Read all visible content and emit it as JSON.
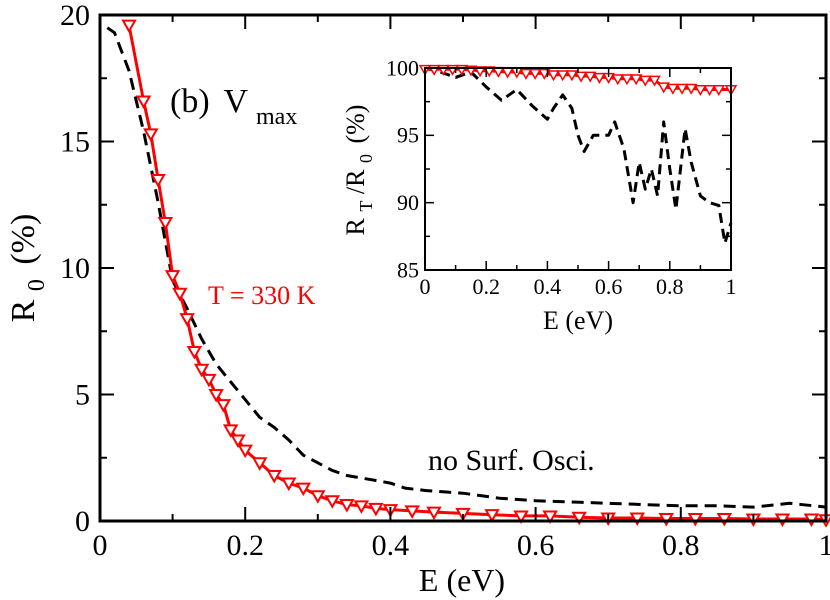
{
  "chart_data": [
    {
      "type": "line",
      "panel_label": "(b)",
      "panel_symbol": "V",
      "panel_symbol_sub": "max",
      "xlabel": "E (eV)",
      "ylabel_main": "R",
      "ylabel_sub": "0",
      "ylabel_unit": "(%)",
      "xlim": [
        0,
        1
      ],
      "ylim": [
        0,
        20
      ],
      "xticks": [
        0,
        0.2,
        0.4,
        0.6,
        0.8,
        1
      ],
      "yticks": [
        0,
        5,
        10,
        15,
        20
      ],
      "xtick_labels": [
        "0",
        "0.2",
        "0.4",
        "0.6",
        "0.8",
        "1"
      ],
      "ytick_labels": [
        "0",
        "5",
        "10",
        "15",
        "20"
      ],
      "annotations": {
        "red_series": "T = 330 K",
        "black_series": "no Surf. Osci."
      },
      "series": [
        {
          "color": "#ff0000",
          "style": "solid-triangle-down",
          "x": [
            0.04,
            0.06,
            0.07,
            0.08,
            0.09,
            0.1,
            0.11,
            0.12,
            0.13,
            0.14,
            0.15,
            0.16,
            0.17,
            0.18,
            0.19,
            0.2,
            0.22,
            0.24,
            0.26,
            0.28,
            0.3,
            0.32,
            0.34,
            0.36,
            0.38,
            0.4,
            0.43,
            0.46,
            0.5,
            0.54,
            0.58,
            0.62,
            0.66,
            0.7,
            0.74,
            0.78,
            0.82,
            0.86,
            0.9,
            0.94,
            0.98,
            1.0
          ],
          "y": [
            19.6,
            16.6,
            15.3,
            13.5,
            11.8,
            9.7,
            9.0,
            8.0,
            6.7,
            6.0,
            5.6,
            5.0,
            4.6,
            3.6,
            3.2,
            2.8,
            2.3,
            1.8,
            1.5,
            1.3,
            1.0,
            0.8,
            0.65,
            0.6,
            0.5,
            0.45,
            0.4,
            0.35,
            0.3,
            0.25,
            0.2,
            0.2,
            0.15,
            0.12,
            0.12,
            0.1,
            0.1,
            0.1,
            0.08,
            0.08,
            0.08,
            0.05
          ]
        },
        {
          "color": "#000000",
          "style": "dashed",
          "x": [
            0.01,
            0.02,
            0.04,
            0.06,
            0.08,
            0.1,
            0.12,
            0.14,
            0.16,
            0.18,
            0.2,
            0.22,
            0.24,
            0.26,
            0.28,
            0.3,
            0.32,
            0.34,
            0.36,
            0.38,
            0.4,
            0.42,
            0.45,
            0.5,
            0.55,
            0.6,
            0.65,
            0.7,
            0.75,
            0.8,
            0.85,
            0.9,
            0.95,
            1.0
          ],
          "y": [
            19.5,
            19.3,
            17.8,
            15.4,
            12.6,
            9.5,
            8.4,
            7.2,
            6.2,
            5.5,
            4.8,
            4.1,
            3.7,
            3.2,
            2.6,
            2.3,
            2.0,
            1.8,
            1.7,
            1.6,
            1.5,
            1.3,
            1.2,
            1.1,
            0.9,
            0.8,
            0.75,
            0.7,
            0.65,
            0.6,
            0.6,
            0.55,
            0.7,
            0.55
          ]
        }
      ]
    },
    {
      "type": "line",
      "xlabel": "E (eV)",
      "ylabel_main": "R",
      "ylabel_sub1": "T",
      "ylabel_mid": "/R",
      "ylabel_sub2": "0",
      "ylabel_unit": "(%)",
      "xlim": [
        0,
        1
      ],
      "ylim": [
        85,
        100
      ],
      "xticks": [
        0,
        0.2,
        0.4,
        0.6,
        0.8,
        1
      ],
      "yticks": [
        85,
        90,
        95,
        100
      ],
      "xtick_labels": [
        "0",
        "0.2",
        "0.4",
        "0.6",
        "0.8",
        "1"
      ],
      "ytick_labels": [
        "85",
        "90",
        "95",
        "100"
      ],
      "series": [
        {
          "color": "#ff0000",
          "style": "solid-triangle-down",
          "x": [
            0,
            0.03,
            0.06,
            0.09,
            0.12,
            0.15,
            0.18,
            0.21,
            0.24,
            0.27,
            0.3,
            0.33,
            0.36,
            0.39,
            0.42,
            0.45,
            0.48,
            0.51,
            0.54,
            0.57,
            0.6,
            0.63,
            0.66,
            0.69,
            0.72,
            0.75,
            0.78,
            0.81,
            0.84,
            0.87,
            0.9,
            0.93,
            0.96,
            1.0
          ],
          "y": [
            99.9,
            99.9,
            99.9,
            99.9,
            99.9,
            99.85,
            99.8,
            99.8,
            99.75,
            99.7,
            99.7,
            99.6,
            99.6,
            99.6,
            99.5,
            99.5,
            99.5,
            99.4,
            99.4,
            99.3,
            99.3,
            99.2,
            99.2,
            99.2,
            99.1,
            99.1,
            98.6,
            98.5,
            98.5,
            98.5,
            98.4,
            98.4,
            98.4,
            98.4
          ]
        },
        {
          "color": "#000000",
          "style": "dashed",
          "x": [
            0,
            0.05,
            0.1,
            0.15,
            0.2,
            0.25,
            0.3,
            0.35,
            0.4,
            0.42,
            0.45,
            0.48,
            0.5,
            0.52,
            0.55,
            0.6,
            0.62,
            0.65,
            0.68,
            0.7,
            0.72,
            0.74,
            0.76,
            0.78,
            0.8,
            0.82,
            0.85,
            0.87,
            0.9,
            0.93,
            0.96,
            0.98,
            1.0
          ],
          "y": [
            100,
            99.7,
            99.3,
            99.7,
            98.6,
            97.6,
            98.4,
            97.2,
            96.2,
            97.0,
            98.0,
            97.0,
            95.0,
            93.8,
            95.0,
            95.0,
            96.0,
            94.0,
            90.0,
            93.0,
            91.0,
            92.5,
            90.5,
            96.0,
            92.5,
            89.5,
            95.5,
            93.0,
            90.5,
            90.0,
            89.8,
            87.0,
            88.5
          ]
        }
      ]
    }
  ]
}
